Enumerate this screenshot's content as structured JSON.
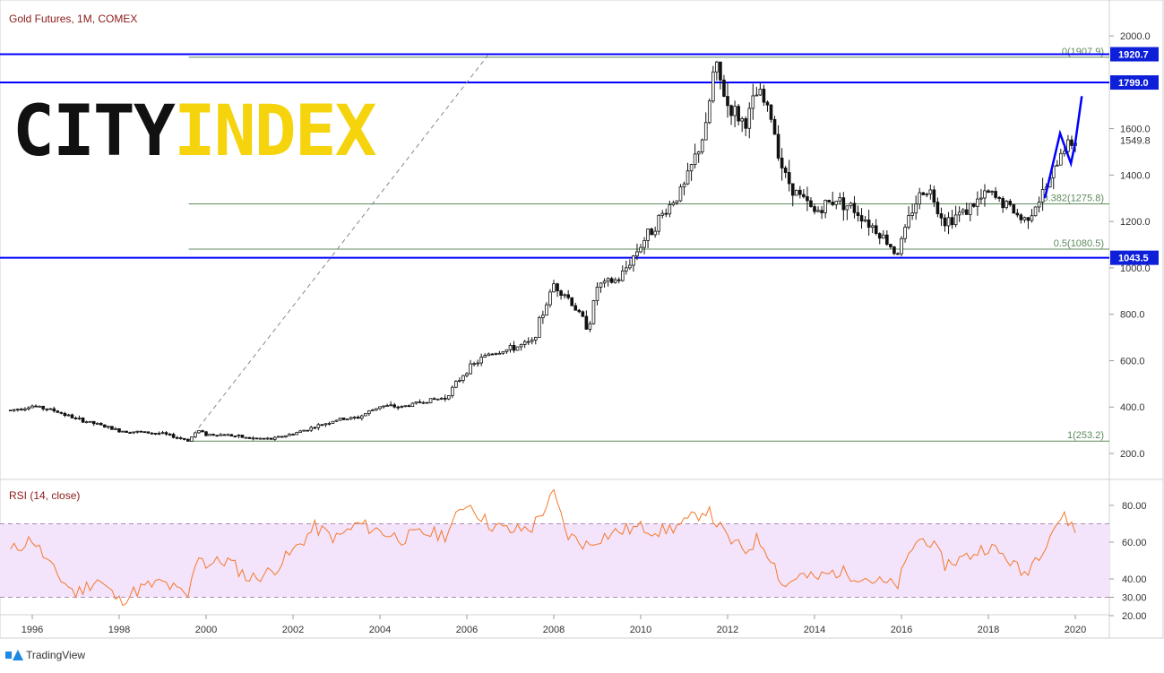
{
  "header": {
    "title": "Gold Futures, 1M, COMEX",
    "rsi_title": "RSI (14, close)"
  },
  "watermark": {
    "city": "CITY",
    "index": "INDEX"
  },
  "footer": {
    "brand": "TradingView"
  },
  "colors": {
    "up_candle": "#ffffff",
    "down_candle": "#111111",
    "level_line": "#0000ff",
    "fib_line": "#5c8a5c",
    "rsi_line": "#f47a2b",
    "rsi_band": "#f3e3fb",
    "price_tag_bg": "#0d1fd8",
    "logo_yellow": "#f6d40d"
  },
  "chart_data": [
    {
      "type": "candlestick",
      "title": "Gold Futures, 1M, COMEX",
      "xlabel": "",
      "ylabel": "",
      "x_ticks": [
        "1996",
        "1998",
        "2000",
        "2002",
        "2004",
        "2006",
        "2008",
        "2010",
        "2012",
        "2014",
        "2016",
        "2018",
        "2020"
      ],
      "y_ticks": [
        "200.0",
        "400.0",
        "600.0",
        "800.0",
        "1000.0",
        "1200.0",
        "1400.0",
        "1600.0",
        "2000.0"
      ],
      "xlim": [
        1995.4,
        2020.9
      ],
      "ylim": [
        0,
        2100
      ],
      "grid": false,
      "series": [
        {
          "points": [
            [
              1995.5,
              386
            ],
            [
              1996.0,
              405
            ],
            [
              1996.5,
              385
            ],
            [
              1997.0,
              350
            ],
            [
              1997.5,
              325
            ],
            [
              1998.0,
              298
            ],
            [
              1998.5,
              292
            ],
            [
              1999.0,
              285
            ],
            [
              1999.6,
              256
            ],
            [
              1999.8,
              300
            ],
            [
              2000.0,
              282
            ],
            [
              2000.5,
              280
            ],
            [
              2001.0,
              265
            ],
            [
              2001.5,
              262
            ],
            [
              2002.0,
              285
            ],
            [
              2002.5,
              315
            ],
            [
              2003.0,
              345
            ],
            [
              2003.5,
              355
            ],
            [
              2004.0,
              405
            ],
            [
              2004.5,
              400
            ],
            [
              2005.0,
              425
            ],
            [
              2005.5,
              440
            ],
            [
              2006.0,
              560
            ],
            [
              2006.5,
              630
            ],
            [
              2007.0,
              650
            ],
            [
              2007.5,
              680
            ],
            [
              2008.0,
              930
            ],
            [
              2008.3,
              880
            ],
            [
              2008.8,
              740
            ],
            [
              2009.0,
              920
            ],
            [
              2009.5,
              950
            ],
            [
              2010.0,
              1100
            ],
            [
              2010.5,
              1230
            ],
            [
              2011.0,
              1350
            ],
            [
              2011.5,
              1600
            ],
            [
              2011.7,
              1880
            ],
            [
              2012.0,
              1700
            ],
            [
              2012.4,
              1620
            ],
            [
              2012.7,
              1760
            ],
            [
              2013.0,
              1650
            ],
            [
              2013.3,
              1400
            ],
            [
              2013.6,
              1320
            ],
            [
              2014.0,
              1240
            ],
            [
              2014.5,
              1300
            ],
            [
              2015.0,
              1240
            ],
            [
              2015.5,
              1150
            ],
            [
              2015.9,
              1060
            ],
            [
              2016.3,
              1280
            ],
            [
              2016.6,
              1350
            ],
            [
              2017.0,
              1200
            ],
            [
              2017.5,
              1250
            ],
            [
              2018.0,
              1320
            ],
            [
              2018.5,
              1260
            ],
            [
              2018.8,
              1200
            ],
            [
              2019.2,
              1300
            ],
            [
              2019.5,
              1410
            ],
            [
              2019.7,
              1520
            ],
            [
              2020.0,
              1550
            ]
          ]
        }
      ],
      "horizontal_levels": [
        1920.7,
        1799.0,
        1043.5
      ],
      "price_tags": [
        {
          "value": 1920.7,
          "label": "1920.7"
        },
        {
          "value": 1799.0,
          "label": "1799.0"
        },
        {
          "value": 1549.8,
          "label": "1549.8"
        },
        {
          "value": 1043.5,
          "label": "1043.5"
        }
      ],
      "fib_levels": [
        {
          "value": 1907.9,
          "label": "0(1907.9)"
        },
        {
          "value": 1275.8,
          "label": "0.382(1275.8)"
        },
        {
          "value": 1080.5,
          "label": "0.5(1080.5)"
        },
        {
          "value": 253.2,
          "label": "1(253.2)"
        }
      ],
      "trend_line": [
        [
          1999.6,
          256
        ],
        [
          2006.5,
          1920
        ]
      ],
      "pattern_overlay": [
        [
          2019.3,
          1300
        ],
        [
          2019.65,
          1580
        ],
        [
          2019.9,
          1450
        ],
        [
          2020.0,
          1540
        ],
        [
          2020.15,
          1740
        ]
      ]
    },
    {
      "type": "line",
      "title": "RSI (14, close)",
      "xlabel": "",
      "ylabel": "",
      "y_ticks": [
        "20.00",
        "30.00",
        "40.00",
        "60.00",
        "80.00"
      ],
      "ylim": [
        20,
        90
      ],
      "band": [
        30,
        70
      ],
      "series": [
        {
          "name": "",
          "points": [
            [
              1995.5,
              55
            ],
            [
              1996.0,
              62
            ],
            [
              1996.5,
              44
            ],
            [
              1997.0,
              32
            ],
            [
              1997.5,
              40
            ],
            [
              1998.0,
              28
            ],
            [
              1998.5,
              35
            ],
            [
              1999.0,
              38
            ],
            [
              1999.6,
              30
            ],
            [
              1999.8,
              55
            ],
            [
              2000.0,
              48
            ],
            [
              2000.5,
              50
            ],
            [
              2001.0,
              40
            ],
            [
              2001.5,
              44
            ],
            [
              2002.0,
              55
            ],
            [
              2002.5,
              68
            ],
            [
              2003.0,
              62
            ],
            [
              2003.5,
              70
            ],
            [
              2004.0,
              66
            ],
            [
              2004.5,
              62
            ],
            [
              2005.0,
              65
            ],
            [
              2005.5,
              64
            ],
            [
              2006.0,
              82
            ],
            [
              2006.5,
              70
            ],
            [
              2007.0,
              66
            ],
            [
              2007.5,
              68
            ],
            [
              2008.0,
              86
            ],
            [
              2008.3,
              64
            ],
            [
              2008.8,
              58
            ],
            [
              2009.0,
              62
            ],
            [
              2009.5,
              66
            ],
            [
              2010.0,
              68
            ],
            [
              2010.5,
              66
            ],
            [
              2011.0,
              70
            ],
            [
              2011.5,
              78
            ],
            [
              2011.7,
              72
            ],
            [
              2012.0,
              62
            ],
            [
              2012.4,
              55
            ],
            [
              2012.7,
              62
            ],
            [
              2013.0,
              52
            ],
            [
              2013.3,
              35
            ],
            [
              2013.6,
              42
            ],
            [
              2014.0,
              40
            ],
            [
              2014.5,
              44
            ],
            [
              2015.0,
              42
            ],
            [
              2015.5,
              38
            ],
            [
              2015.9,
              36
            ],
            [
              2016.3,
              60
            ],
            [
              2016.6,
              62
            ],
            [
              2017.0,
              48
            ],
            [
              2017.5,
              52
            ],
            [
              2018.0,
              58
            ],
            [
              2018.5,
              50
            ],
            [
              2018.8,
              42
            ],
            [
              2019.2,
              55
            ],
            [
              2019.5,
              68
            ],
            [
              2019.7,
              74
            ],
            [
              2020.0,
              68
            ]
          ]
        }
      ]
    }
  ]
}
